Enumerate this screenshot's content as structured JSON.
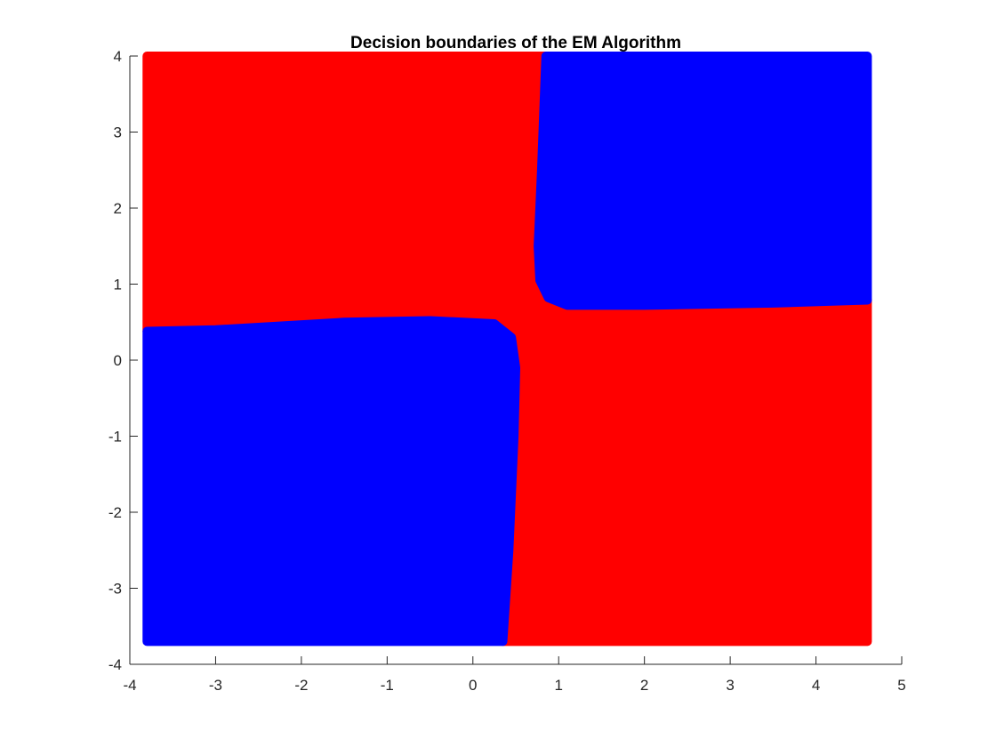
{
  "chart_data": {
    "type": "scatter",
    "title": "Decision boundaries of the EM Algorithm",
    "xlabel": "",
    "ylabel": "",
    "xlim": [
      -4,
      5
    ],
    "ylim": [
      -4,
      4
    ],
    "xticks": [
      -4,
      -3,
      -2,
      -1,
      0,
      1,
      2,
      3,
      4,
      5
    ],
    "yticks": [
      -4,
      -3,
      -2,
      -1,
      0,
      1,
      2,
      3,
      4
    ],
    "grid": false,
    "legend": "none",
    "data_extent": {
      "x": [
        -3.8,
        4.6
      ],
      "y": [
        -3.7,
        4.0
      ]
    },
    "classes": [
      {
        "color": "#ff0000",
        "region": "upper-left and lower-right",
        "outline": [
          [
            -3.8,
            4.0
          ],
          [
            0.85,
            4.0
          ],
          [
            0.8,
            2.5
          ],
          [
            0.76,
            1.5
          ],
          [
            0.78,
            1.05
          ],
          [
            0.88,
            0.82
          ],
          [
            1.1,
            0.72
          ],
          [
            2.0,
            0.72
          ],
          [
            3.5,
            0.75
          ],
          [
            4.6,
            0.79
          ],
          [
            4.6,
            -3.7
          ],
          [
            0.35,
            -3.7
          ],
          [
            0.42,
            -2.5
          ],
          [
            0.48,
            -1.0
          ],
          [
            0.5,
            -0.1
          ],
          [
            0.45,
            0.3
          ],
          [
            0.25,
            0.48
          ],
          [
            -0.5,
            0.52
          ],
          [
            -1.5,
            0.5
          ],
          [
            -3.0,
            0.4
          ],
          [
            -3.8,
            0.38
          ]
        ]
      },
      {
        "color": "#0000ff",
        "region": "lower-left",
        "outline": [
          [
            -3.8,
            0.38
          ],
          [
            -3.0,
            0.4
          ],
          [
            -1.5,
            0.5
          ],
          [
            -0.5,
            0.52
          ],
          [
            0.25,
            0.48
          ],
          [
            0.45,
            0.3
          ],
          [
            0.5,
            -0.1
          ],
          [
            0.48,
            -1.0
          ],
          [
            0.42,
            -2.5
          ],
          [
            0.35,
            -3.7
          ],
          [
            -3.8,
            -3.7
          ]
        ]
      },
      {
        "color": "#0000ff",
        "region": "upper-right",
        "outline": [
          [
            0.85,
            4.0
          ],
          [
            4.6,
            4.0
          ],
          [
            4.6,
            0.79
          ],
          [
            3.5,
            0.75
          ],
          [
            2.0,
            0.72
          ],
          [
            1.1,
            0.72
          ],
          [
            0.88,
            0.82
          ],
          [
            0.78,
            1.05
          ],
          [
            0.76,
            1.5
          ],
          [
            0.8,
            2.5
          ]
        ]
      }
    ]
  }
}
